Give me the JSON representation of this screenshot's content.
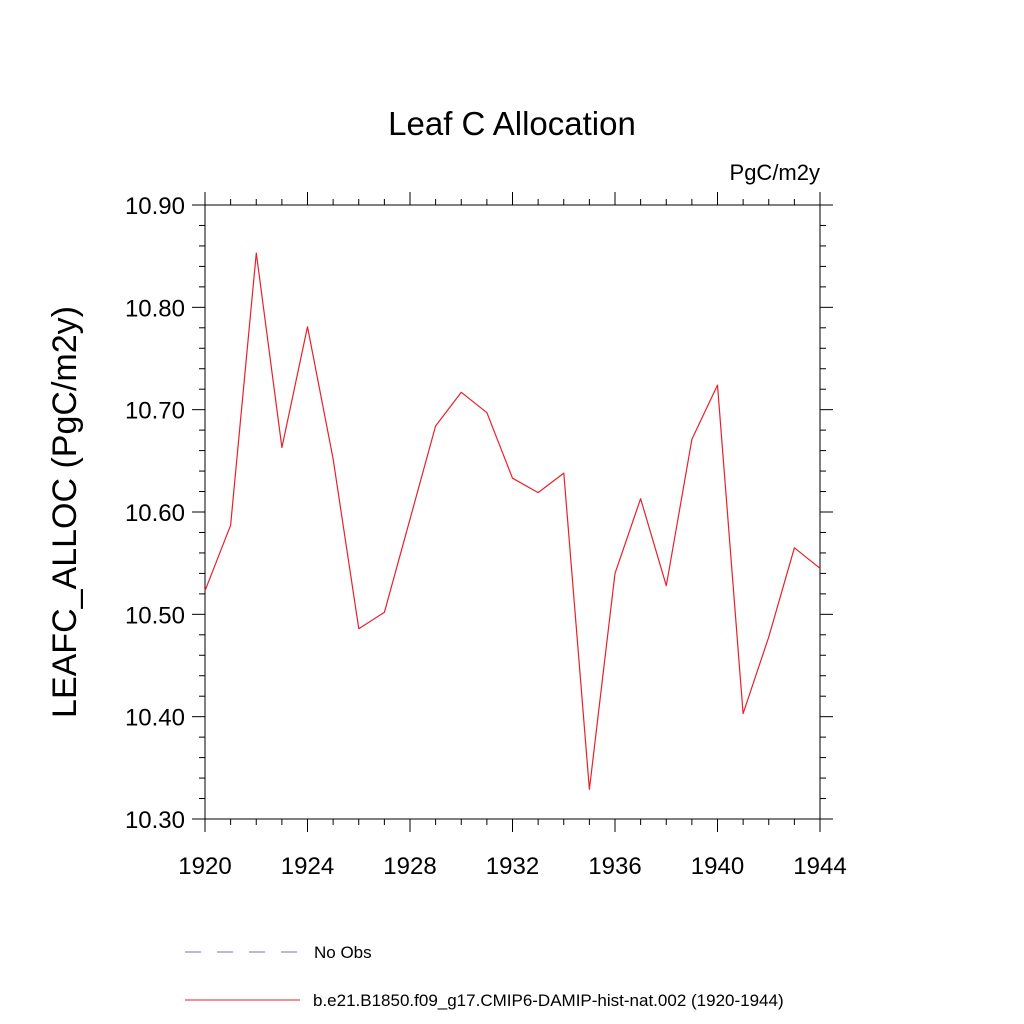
{
  "chart_data": {
    "type": "line",
    "title": "Leaf C Allocation",
    "units_label": "PgC/m2y",
    "ylabel": "LEAFC_ALLOC  (PgC/m2y)",
    "xlabel": "",
    "xlim": [
      1920,
      1944
    ],
    "ylim": [
      10.3,
      10.9
    ],
    "x_ticks": [
      1920,
      1924,
      1928,
      1932,
      1936,
      1940,
      1944
    ],
    "x_tick_labels": [
      "1920",
      "1924",
      "1928",
      "1932",
      "1936",
      "1940",
      "1944"
    ],
    "y_ticks": [
      10.3,
      10.4,
      10.5,
      10.6,
      10.7,
      10.8,
      10.9
    ],
    "y_tick_labels": [
      "10.30",
      "10.40",
      "10.50",
      "10.60",
      "10.70",
      "10.80",
      "10.90"
    ],
    "grid": false,
    "legend_position": "bottom",
    "series": [
      {
        "name": "b.e21.B1850.f09_g17.CMIP6-DAMIP-hist-nat.002 (1920-1944)",
        "color": "#e8202a",
        "style": "solid",
        "x": [
          1920,
          1921,
          1922,
          1923,
          1924,
          1925,
          1926,
          1927,
          1928,
          1929,
          1930,
          1931,
          1932,
          1933,
          1934,
          1935,
          1936,
          1937,
          1938,
          1939,
          1940,
          1941,
          1942,
          1943,
          1944
        ],
        "values": [
          10.523,
          10.587,
          10.853,
          10.663,
          10.781,
          10.652,
          10.486,
          10.502,
          10.593,
          10.684,
          10.717,
          10.697,
          10.633,
          10.619,
          10.638,
          10.329,
          10.54,
          10.613,
          10.528,
          10.671,
          10.724,
          10.403,
          10.478,
          10.565,
          10.545
        ]
      }
    ],
    "legend": [
      {
        "name": "No Obs",
        "color": "#7b6fb8",
        "style": "dashed"
      },
      {
        "name": "b.e21.B1850.f09_g17.CMIP6-DAMIP-hist-nat.002 (1920-1944)",
        "color": "#e8202a",
        "style": "solid"
      }
    ]
  }
}
